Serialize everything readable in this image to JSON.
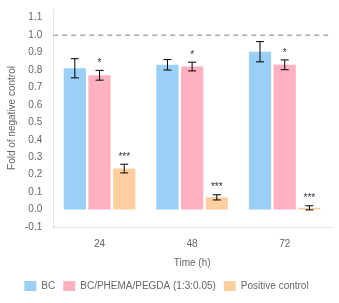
{
  "chart_data": {
    "type": "bar",
    "xlabel": "Time (h)",
    "ylabel": "Fold of negative control",
    "categories": [
      "24",
      "48",
      "72"
    ],
    "series": [
      {
        "name": "BC",
        "values": [
          0.81,
          0.83,
          0.905
        ],
        "errors": [
          0.055,
          0.03,
          0.058
        ]
      },
      {
        "name": "BC/PHEMA/PEGDA (1:3:0.05)",
        "values": [
          0.77,
          0.82,
          0.83
        ],
        "errors": [
          0.028,
          0.025,
          0.028
        ],
        "annotations": [
          "*",
          "*",
          "*"
        ]
      },
      {
        "name": "Positive control",
        "values": [
          0.235,
          0.07,
          0.01
        ],
        "errors": [
          0.025,
          0.015,
          0.012
        ],
        "annotations": [
          "***",
          "***",
          "***"
        ]
      }
    ],
    "ylim": [
      -0.1,
      1.15
    ],
    "yticks": [
      -0.1,
      {
        "value": 0.0,
        "label": "0.0"
      },
      0.1,
      0.2,
      0.3,
      0.4,
      0.5,
      0.6,
      0.7,
      0.8,
      0.9,
      {
        "value": 1.0,
        "label": "1.0"
      },
      1.1
    ],
    "grid": false,
    "legend": "bottom",
    "hlines": [
      {
        "value": 1.0,
        "line_style": "dashed",
        "color": "gray"
      }
    ]
  }
}
